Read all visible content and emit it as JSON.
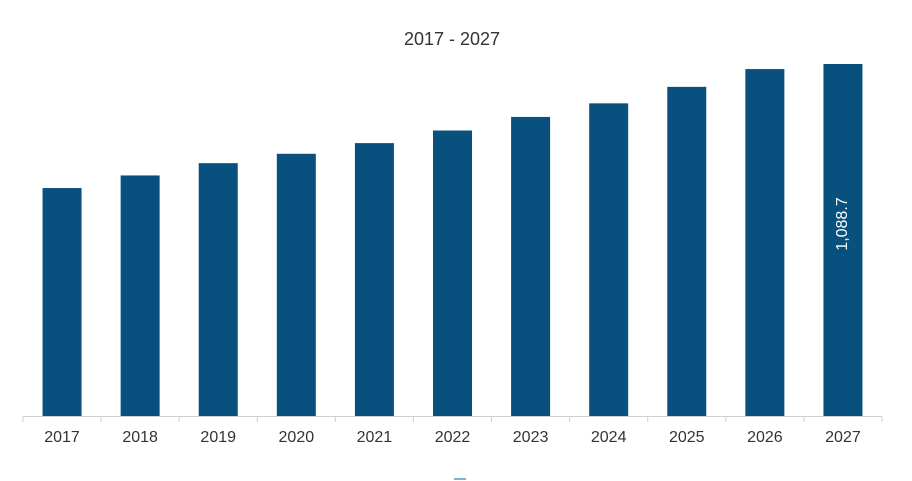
{
  "chart_data": {
    "type": "bar",
    "title": "2017 - 2027",
    "categories": [
      "2017",
      "2018",
      "2019",
      "2020",
      "2021",
      "2022",
      "2023",
      "2024",
      "2025",
      "2026",
      "2027"
    ],
    "values": [
      705,
      744,
      782,
      811,
      844,
      883,
      925,
      967,
      1018,
      1073,
      1088.7
    ],
    "value_labels": [
      null,
      null,
      null,
      null,
      null,
      null,
      null,
      null,
      null,
      null,
      "1,088.7"
    ],
    "color": "#08507e"
  }
}
